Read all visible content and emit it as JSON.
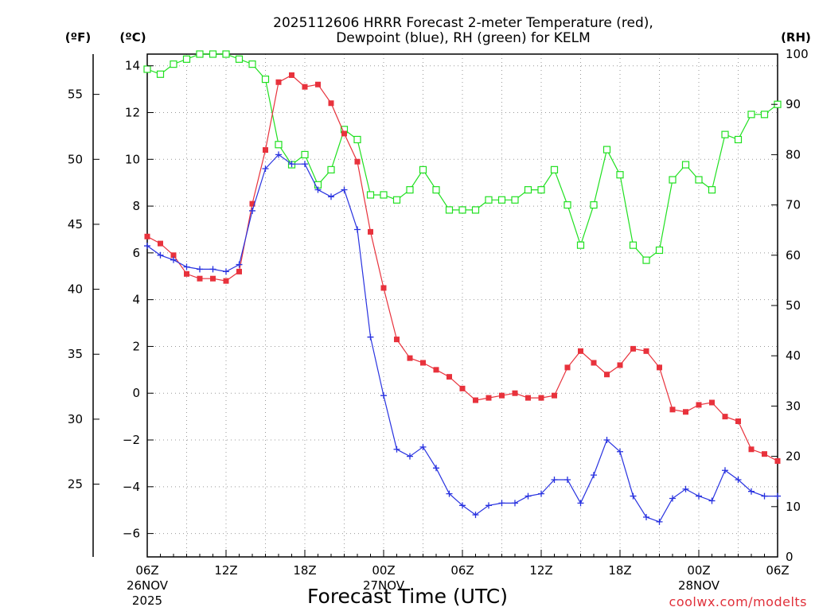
{
  "chart_data": {
    "type": "line",
    "title_line1": "2025112606 HRRR Forecast 2-meter Temperature (red),",
    "title_line2": "Dewpoint (blue), RH (green) for KELM",
    "xlabel": "Forecast Time (UTC)",
    "credit": "coolwx.com/modelts",
    "units": {
      "fahrenheit": "(ºF)",
      "celsius": "(ºC)",
      "rh": "(RH)"
    },
    "x_range_hours": [
      0,
      48
    ],
    "x_ticks": [
      {
        "hour": 0,
        "label": "06Z",
        "date": "26NOV",
        "year": "2025"
      },
      {
        "hour": 6,
        "label": "12Z",
        "date": "",
        "year": ""
      },
      {
        "hour": 12,
        "label": "18Z",
        "date": "",
        "year": ""
      },
      {
        "hour": 18,
        "label": "00Z",
        "date": "27NOV",
        "year": ""
      },
      {
        "hour": 24,
        "label": "06Z",
        "date": "",
        "year": ""
      },
      {
        "hour": 30,
        "label": "12Z",
        "date": "",
        "year": ""
      },
      {
        "hour": 36,
        "label": "18Z",
        "date": "",
        "year": ""
      },
      {
        "hour": 42,
        "label": "00Z",
        "date": "28NOV",
        "year": ""
      },
      {
        "hour": 48,
        "label": "06Z",
        "date": "",
        "year": ""
      }
    ],
    "y_celsius": {
      "range": [
        -7,
        14.5
      ],
      "ticks": [
        "14",
        "12",
        "10",
        "8",
        "6",
        "4",
        "2",
        "0",
        "−2",
        "−4",
        "−6"
      ],
      "tick_values": [
        14,
        12,
        10,
        8,
        6,
        4,
        2,
        0,
        -2,
        -4,
        -6
      ]
    },
    "y_fahrenheit": {
      "ticks": [
        "55",
        "50",
        "45",
        "40",
        "35",
        "30",
        "25"
      ],
      "tick_values": [
        55,
        50,
        45,
        40,
        35,
        30,
        25
      ]
    },
    "y_rh": {
      "range": [
        0,
        100
      ],
      "ticks": [
        "100",
        "90",
        "80",
        "70",
        "60",
        "50",
        "40",
        "30",
        "20",
        "10",
        "0"
      ],
      "tick_values": [
        100,
        90,
        80,
        70,
        60,
        50,
        40,
        30,
        20,
        10,
        0
      ]
    },
    "series": [
      {
        "name": "Temperature (C)",
        "axis": "celsius",
        "color": "#e8323c",
        "marker": "filled-square",
        "values": [
          6.7,
          6.4,
          5.9,
          5.1,
          4.9,
          4.9,
          4.8,
          5.2,
          8.1,
          10.4,
          13.3,
          13.6,
          13.1,
          13.2,
          12.4,
          11.1,
          9.9,
          6.9,
          4.5,
          2.3,
          1.5,
          1.3,
          1.0,
          0.7,
          0.2,
          -0.3,
          -0.2,
          -0.1,
          0.0,
          -0.2,
          -0.2,
          -0.1,
          1.1,
          1.8,
          1.3,
          0.8,
          1.2,
          1.9,
          1.8,
          1.1,
          -0.7,
          -0.8,
          -0.5,
          -0.4,
          -1.0,
          -1.2,
          -2.4,
          -2.6,
          -2.9
        ]
      },
      {
        "name": "Dewpoint (C)",
        "axis": "celsius",
        "color": "#2832e0",
        "marker": "plus",
        "values": [
          6.3,
          5.9,
          5.7,
          5.4,
          5.3,
          5.3,
          5.2,
          5.5,
          7.8,
          9.6,
          10.2,
          9.8,
          9.8,
          8.7,
          8.4,
          8.7,
          7.0,
          2.4,
          -0.1,
          -2.4,
          -2.7,
          -2.3,
          -3.2,
          -4.3,
          -4.8,
          -5.2,
          -4.8,
          -4.7,
          -4.7,
          -4.4,
          -4.3,
          -3.7,
          -3.7,
          -4.7,
          -3.5,
          -2.0,
          -2.5,
          -4.4,
          -5.3,
          -5.5,
          -4.5,
          -4.1,
          -4.4,
          -4.6,
          -3.3,
          -3.7,
          -4.2,
          -4.4,
          -4.4
        ]
      },
      {
        "name": "RH (%)",
        "axis": "rh",
        "color": "#20e020",
        "marker": "open-square",
        "values": [
          97,
          96,
          98,
          99,
          100,
          100,
          100,
          99,
          98,
          95,
          82,
          78,
          80,
          74,
          77,
          85,
          83,
          72,
          72,
          71,
          73,
          77,
          73,
          69,
          69,
          69,
          71,
          71,
          71,
          73,
          73,
          77,
          70,
          62,
          70,
          81,
          76,
          62,
          59,
          61,
          75,
          78,
          75,
          73,
          84,
          83,
          88,
          88,
          90
        ]
      }
    ]
  }
}
